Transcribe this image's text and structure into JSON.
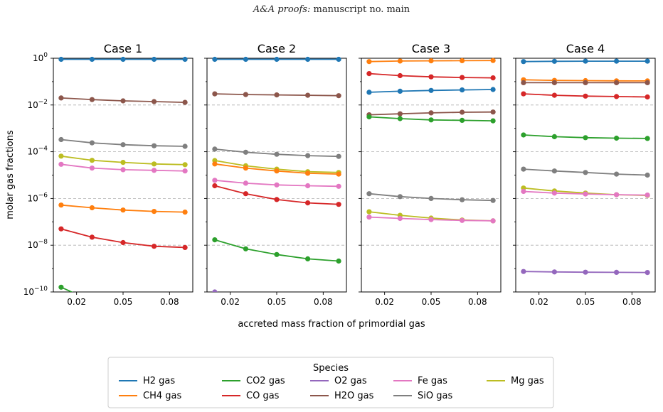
{
  "header": {
    "journal": "A&A proofs:",
    "manuscript": "manuscript no. main"
  },
  "figure": {
    "xlabel": "accreted mass fraction of primordial gas",
    "ylabel": "molar gas fractions",
    "legend_title": "Species"
  },
  "colors": {
    "H2 gas": "#1f77b4",
    "CH4 gas": "#ff7f0e",
    "CO2 gas": "#2ca02c",
    "CO gas": "#d62728",
    "O2 gas": "#9467bd",
    "H2O gas": "#8c564b",
    "Fe gas": "#e377c2",
    "SiO gas": "#7f7f7f",
    "Mg gas": "#bcbd22"
  },
  "chart_data": [
    {
      "type": "line",
      "title": "Case 1",
      "x": [
        0.01,
        0.03,
        0.05,
        0.07,
        0.09
      ],
      "yscale": "log",
      "ylim": [
        1e-10,
        1
      ],
      "series": [
        {
          "name": "H2 gas",
          "values": [
            0.9,
            0.9,
            0.9,
            0.9,
            0.9
          ]
        },
        {
          "name": "H2O gas",
          "values": [
            0.02,
            0.017,
            0.015,
            0.014,
            0.013
          ]
        },
        {
          "name": "SiO gas",
          "values": [
            0.00033,
            0.00024,
            0.0002,
            0.00018,
            0.00017
          ]
        },
        {
          "name": "Mg gas",
          "values": [
            6.5e-05,
            4.3e-05,
            3.5e-05,
            3e-05,
            2.8e-05
          ]
        },
        {
          "name": "Fe gas",
          "values": [
            2.9e-05,
            2e-05,
            1.7e-05,
            1.6e-05,
            1.5e-05
          ]
        },
        {
          "name": "CH4 gas",
          "values": [
            5.2e-07,
            4e-07,
            3.2e-07,
            2.8e-07,
            2.6e-07
          ]
        },
        {
          "name": "CO gas",
          "values": [
            5e-08,
            2.2e-08,
            1.3e-08,
            9e-09,
            8e-09
          ]
        },
        {
          "name": "CO2 gas",
          "values": [
            1.6e-10,
            4e-11,
            null,
            null,
            null
          ]
        }
      ]
    },
    {
      "type": "line",
      "title": "Case 2",
      "x": [
        0.01,
        0.03,
        0.05,
        0.07,
        0.09
      ],
      "yscale": "log",
      "ylim": [
        1e-10,
        1
      ],
      "series": [
        {
          "name": "H2 gas",
          "values": [
            0.9,
            0.9,
            0.9,
            0.9,
            0.9
          ]
        },
        {
          "name": "H2O gas",
          "values": [
            0.03,
            0.028,
            0.027,
            0.026,
            0.025
          ]
        },
        {
          "name": "SiO gas",
          "values": [
            0.00013,
            9.5e-05,
            7.8e-05,
            6.8e-05,
            6.3e-05
          ]
        },
        {
          "name": "Mg gas",
          "values": [
            4.2e-05,
            2.5e-05,
            1.8e-05,
            1.4e-05,
            1.3e-05
          ]
        },
        {
          "name": "CH4 gas",
          "values": [
            3e-05,
            2e-05,
            1.5e-05,
            1.2e-05,
            1.1e-05
          ]
        },
        {
          "name": "Fe gas",
          "values": [
            6e-06,
            4.5e-06,
            3.8e-06,
            3.5e-06,
            3.3e-06
          ]
        },
        {
          "name": "CO gas",
          "values": [
            3.5e-06,
            1.6e-06,
            9e-07,
            6.5e-07,
            5.6e-07
          ]
        },
        {
          "name": "CO2 gas",
          "values": [
            1.7e-08,
            7e-09,
            4e-09,
            2.6e-09,
            2.1e-09
          ]
        },
        {
          "name": "O2 gas",
          "values": [
            1e-10,
            5e-11,
            null,
            null,
            null
          ]
        }
      ]
    },
    {
      "type": "line",
      "title": "Case 3",
      "x": [
        0.01,
        0.03,
        0.05,
        0.07,
        0.09
      ],
      "yscale": "log",
      "ylim": [
        1e-10,
        1
      ],
      "series": [
        {
          "name": "CH4 gas",
          "values": [
            0.72,
            0.76,
            0.78,
            0.79,
            0.8
          ]
        },
        {
          "name": "CO gas",
          "values": [
            0.22,
            0.18,
            0.16,
            0.15,
            0.145
          ]
        },
        {
          "name": "H2 gas",
          "values": [
            0.035,
            0.039,
            0.042,
            0.044,
            0.046
          ]
        },
        {
          "name": "H2O gas",
          "values": [
            0.0038,
            0.0042,
            0.0046,
            0.0049,
            0.005
          ]
        },
        {
          "name": "CO2 gas",
          "values": [
            0.0031,
            0.0026,
            0.0023,
            0.0022,
            0.0021
          ]
        },
        {
          "name": "SiO gas",
          "values": [
            1.6e-06,
            1.2e-06,
            1e-06,
            8.8e-07,
            8.2e-07
          ]
        },
        {
          "name": "Mg gas",
          "values": [
            2.7e-07,
            1.9e-07,
            1.45e-07,
            1.2e-07,
            1.1e-07
          ]
        },
        {
          "name": "Fe gas",
          "values": [
            1.6e-07,
            1.4e-07,
            1.25e-07,
            1.15e-07,
            1.1e-07
          ]
        }
      ]
    },
    {
      "type": "line",
      "title": "Case 4",
      "x": [
        0.01,
        0.03,
        0.05,
        0.07,
        0.09
      ],
      "yscale": "log",
      "ylim": [
        1e-10,
        1
      ],
      "series": [
        {
          "name": "H2 gas",
          "values": [
            0.72,
            0.74,
            0.75,
            0.75,
            0.75
          ]
        },
        {
          "name": "CH4 gas",
          "values": [
            0.12,
            0.113,
            0.11,
            0.108,
            0.107
          ]
        },
        {
          "name": "H2O gas",
          "values": [
            0.09,
            0.09,
            0.09,
            0.09,
            0.09
          ]
        },
        {
          "name": "CO gas",
          "values": [
            0.03,
            0.026,
            0.024,
            0.023,
            0.022
          ]
        },
        {
          "name": "CO2 gas",
          "values": [
            0.00052,
            0.00044,
            0.0004,
            0.00038,
            0.00037
          ]
        },
        {
          "name": "SiO gas",
          "values": [
            1.8e-05,
            1.5e-05,
            1.3e-05,
            1.1e-05,
            1e-05
          ]
        },
        {
          "name": "Mg gas",
          "values": [
            2.8e-06,
            2.1e-06,
            1.7e-06,
            1.45e-06,
            1.35e-06
          ]
        },
        {
          "name": "Fe gas",
          "values": [
            2e-06,
            1.7e-06,
            1.55e-06,
            1.45e-06,
            1.4e-06
          ]
        },
        {
          "name": "O2 gas",
          "values": [
            7.5e-10,
            7.2e-10,
            7e-10,
            6.9e-10,
            6.8e-10
          ]
        }
      ]
    }
  ],
  "axes": {
    "xticks": [
      {
        "v": 0.02,
        "label": "0.02"
      },
      {
        "v": 0.05,
        "label": "0.05"
      },
      {
        "v": 0.08,
        "label": "0.08"
      }
    ],
    "yticks": [
      {
        "exp": 0,
        "base": "10",
        "sup": "0"
      },
      {
        "exp": -2,
        "base": "10",
        "sup": "−2"
      },
      {
        "exp": -4,
        "base": "10",
        "sup": "−4"
      },
      {
        "exp": -6,
        "base": "10",
        "sup": "−6"
      },
      {
        "exp": -8,
        "base": "10",
        "sup": "−8"
      },
      {
        "exp": -10,
        "base": "10",
        "sup": "−10"
      }
    ]
  },
  "legend": {
    "columns": [
      [
        "H2 gas",
        "CH4 gas"
      ],
      [
        "CO2 gas",
        "CO gas"
      ],
      [
        "O2 gas",
        "H2O gas"
      ],
      [
        "Fe gas",
        "SiO gas"
      ],
      [
        "Mg gas"
      ]
    ]
  }
}
